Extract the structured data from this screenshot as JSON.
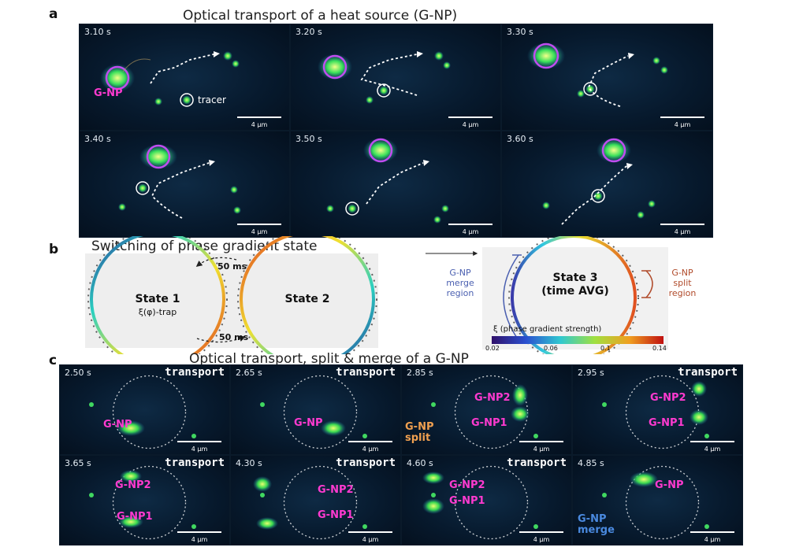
{
  "panel_a": {
    "letter": "a",
    "title": "Optical transport of a heat source (G-NP)",
    "np_label": "G-NP",
    "tracer_label": "tracer",
    "scale_label": "4 μm",
    "frames": [
      {
        "time": "3.10 s"
      },
      {
        "time": "3.20 s"
      },
      {
        "time": "3.30 s"
      },
      {
        "time": "3.40 s"
      },
      {
        "time": "3.50 s"
      },
      {
        "time": "3.60 s"
      }
    ]
  },
  "panel_b": {
    "letter": "b",
    "title": "Switching of phase gradient state",
    "state1": "State 1",
    "state1_sub": "ξ(φ)-trap",
    "state2": "State 2",
    "interval_top": "50 ms",
    "interval_bottom": "50 ms",
    "state3_line1": "State 3",
    "state3_line2": "(time AVG)",
    "merge_label": [
      "G-NP",
      "merge",
      "region"
    ],
    "split_label": [
      "G-NP",
      "split",
      "region"
    ],
    "colorbar_title": "ξ (phase gradient strength)",
    "colorbar_ticks": [
      "0.02",
      "0.06",
      "0.1",
      "0.14"
    ],
    "colors": {
      "merge": "#4a5fb0",
      "split": "#b04a2a"
    }
  },
  "panel_c": {
    "letter": "c",
    "title": "Optical transport, split & merge of a G-NP",
    "scale_label": "4 μm",
    "split_label": [
      "G-NP",
      "split"
    ],
    "merge_label": [
      "G-NP",
      "merge"
    ],
    "frames": [
      {
        "time": "2.50 s",
        "mode": "transport",
        "labels": [
          "G-NP"
        ]
      },
      {
        "time": "2.65 s",
        "mode": "transport",
        "labels": [
          "G-NP"
        ]
      },
      {
        "time": "2.85 s",
        "mode": "",
        "labels": [
          "G-NP2",
          "G-NP1"
        ]
      },
      {
        "time": "2.95 s",
        "mode": "transport",
        "labels": [
          "G-NP2",
          "G-NP1"
        ]
      },
      {
        "time": "3.65 s",
        "mode": "transport",
        "labels": [
          "G-NP2",
          "G-NP1"
        ]
      },
      {
        "time": "4.30 s",
        "mode": "transport",
        "labels": [
          "G-NP2",
          "G-NP1"
        ]
      },
      {
        "time": "4.60 s",
        "mode": "transport",
        "labels": [
          "G-NP2",
          "G-NP1"
        ]
      },
      {
        "time": "4.85 s",
        "mode": "",
        "labels": [
          "G-NP"
        ]
      }
    ]
  }
}
